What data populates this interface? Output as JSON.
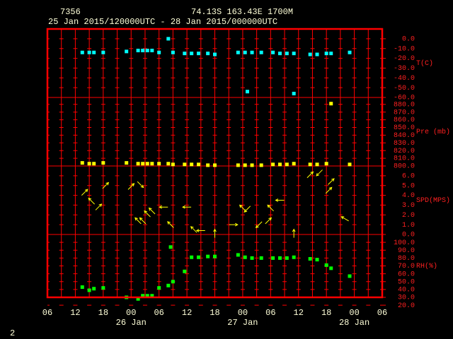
{
  "header": {
    "station": "7356",
    "location": "74.13S  163.43E  1700M",
    "period": "25 Jan 2015/120000UTC - 28 Jan 2015/000000UTC"
  },
  "footer": "2",
  "chart_data": [
    {
      "type": "scatter",
      "ylabel": "T(C)",
      "color": "#00ffff",
      "xlim": [
        "2015-01-25T06:00",
        "2015-01-28T06:00"
      ],
      "ylim": [
        -60,
        10
      ],
      "yticks": [
        {
          "value": 0,
          "label": "0.0"
        },
        {
          "value": -10,
          "label": "-10.0"
        },
        {
          "value": -20,
          "label": "-20.0"
        },
        {
          "value": -30,
          "label": "-30.0"
        },
        {
          "value": -40,
          "label": "-40.0"
        },
        {
          "value": -50,
          "label": "-50.0"
        },
        {
          "value": -60,
          "label": "-60.0"
        }
      ],
      "x": [
        "2015-01-25T13:30",
        "2015-01-25T15:00",
        "2015-01-25T16:00",
        "2015-01-25T18:00",
        "2015-01-25T23:00",
        "2015-01-26T01:30",
        "2015-01-26T02:30",
        "2015-01-26T03:30",
        "2015-01-26T04:30",
        "2015-01-26T06:00",
        "2015-01-26T08:00",
        "2015-01-26T09:00",
        "2015-01-26T11:30",
        "2015-01-26T13:00",
        "2015-01-26T14:30",
        "2015-01-26T16:30",
        "2015-01-26T18:00",
        "2015-01-26T23:00",
        "2015-01-27T00:30",
        "2015-01-27T01:00",
        "2015-01-27T02:00",
        "2015-01-27T04:00",
        "2015-01-27T06:30",
        "2015-01-27T08:00",
        "2015-01-27T09:30",
        "2015-01-27T11:00",
        "2015-01-27T11:00",
        "2015-01-27T14:30",
        "2015-01-27T16:00",
        "2015-01-27T18:00",
        "2015-01-27T19:00",
        "2015-01-27T23:00"
      ],
      "values": [
        -14,
        -14,
        -14,
        -14,
        -13,
        -12,
        -12,
        -12,
        -12,
        -14,
        0,
        -14,
        -15,
        -15,
        -15,
        -15,
        -16,
        -14,
        -14,
        -54,
        -14,
        -14,
        -14,
        -15,
        -15,
        -15,
        -56,
        -16,
        -16,
        -15,
        -15,
        -14
      ]
    },
    {
      "type": "scatter",
      "ylabel": "Pre (mb)",
      "color": "#ffff00",
      "xlim": [
        "2015-01-25T06:00",
        "2015-01-28T06:00"
      ],
      "ylim": [
        800,
        889
      ],
      "yticks": [
        {
          "value": 880,
          "label": "880.0"
        },
        {
          "value": 870,
          "label": "870.0"
        },
        {
          "value": 860,
          "label": "860.0"
        },
        {
          "value": 850,
          "label": "850.0"
        },
        {
          "value": 840,
          "label": "840.0"
        },
        {
          "value": 830,
          "label": "830.0"
        },
        {
          "value": 820,
          "label": "820.0"
        },
        {
          "value": 810,
          "label": "810.0"
        },
        {
          "value": 800,
          "label": "800.0"
        }
      ],
      "x": [
        "2015-01-25T13:30",
        "2015-01-25T15:00",
        "2015-01-25T16:00",
        "2015-01-25T18:00",
        "2015-01-25T23:00",
        "2015-01-26T01:30",
        "2015-01-26T02:30",
        "2015-01-26T03:30",
        "2015-01-26T04:30",
        "2015-01-26T06:00",
        "2015-01-26T08:00",
        "2015-01-26T09:00",
        "2015-01-26T11:30",
        "2015-01-26T13:00",
        "2015-01-26T14:30",
        "2015-01-26T16:30",
        "2015-01-26T18:00",
        "2015-01-26T23:00",
        "2015-01-27T00:30",
        "2015-01-27T02:00",
        "2015-01-27T04:00",
        "2015-01-27T06:30",
        "2015-01-27T08:00",
        "2015-01-27T09:30",
        "2015-01-27T11:00",
        "2015-01-27T14:30",
        "2015-01-27T16:00",
        "2015-01-27T18:00",
        "2015-01-27T19:00",
        "2015-01-27T23:00"
      ],
      "values": [
        804,
        803,
        803,
        804,
        804,
        803,
        803,
        803,
        803,
        803,
        803,
        802,
        802,
        802,
        802,
        801,
        801,
        801,
        801,
        801,
        801,
        802,
        802,
        802,
        803,
        802,
        802,
        803,
        881,
        802
      ]
    },
    {
      "type": "vector",
      "ylabel": "SPD(MPS)",
      "color": "#ffff00",
      "xlim": [
        "2015-01-25T06:00",
        "2015-01-28T06:00"
      ],
      "ylim": [
        0,
        7
      ],
      "yticks": [
        {
          "value": 6,
          "label": "6.0"
        },
        {
          "value": 5,
          "label": "5.0"
        },
        {
          "value": 4,
          "label": "4.0"
        },
        {
          "value": 3,
          "label": "3.0"
        },
        {
          "value": 2,
          "label": "2.0"
        },
        {
          "value": 1,
          "label": "1.0"
        },
        {
          "value": 0,
          "label": "0.0"
        }
      ],
      "x": [
        "2015-01-25T14:00",
        "2015-01-25T15:30",
        "2015-01-25T17:00",
        "2015-01-25T18:30",
        "2015-01-26T00:00",
        "2015-01-26T01:30",
        "2015-01-26T02:00",
        "2015-01-26T02:30",
        "2015-01-26T03:30",
        "2015-01-26T04:30",
        "2015-01-26T07:00",
        "2015-01-26T08:30",
        "2015-01-26T12:00",
        "2015-01-26T13:30",
        "2015-01-26T15:00",
        "2015-01-26T18:00",
        "2015-01-26T22:00",
        "2015-01-27T00:00",
        "2015-01-27T01:00",
        "2015-01-27T03:30",
        "2015-01-27T05:30",
        "2015-01-27T06:00",
        "2015-01-27T08:00",
        "2015-01-27T11:00",
        "2015-01-27T14:30",
        "2015-01-27T16:30",
        "2015-01-27T18:30",
        "2015-01-27T19:00",
        "2015-01-27T22:00"
      ],
      "values": [
        4.3,
        3.4,
        2.8,
        5.0,
        4.9,
        1.4,
        5.1,
        1.4,
        2.1,
        2.4,
        2.8,
        1.0,
        2.8,
        0.5,
        0.4,
        0.1,
        1.0,
        2.7,
        2.6,
        1.0,
        1.4,
        2.7,
        3.5,
        0.1,
        6.1,
        6.3,
        4.5,
        5.4,
        1.6
      ],
      "direction": [
        45,
        315,
        45,
        45,
        45,
        315,
        135,
        315,
        315,
        315,
        270,
        315,
        270,
        315,
        270,
        0,
        90,
        315,
        225,
        225,
        45,
        315,
        270,
        0,
        45,
        225,
        45,
        45,
        300
      ]
    },
    {
      "type": "scatter",
      "ylabel": "RH(%)",
      "color": "#00ff00",
      "xlim": [
        "2015-01-25T06:00",
        "2015-01-28T06:00"
      ],
      "ylim": [
        30,
        110
      ],
      "yticks": [
        {
          "value": 100,
          "label": "100.0"
        },
        {
          "value": 90,
          "label": "90.0"
        },
        {
          "value": 80,
          "label": "80.0"
        },
        {
          "value": 70,
          "label": "70.0"
        },
        {
          "value": 60,
          "label": "60.0"
        },
        {
          "value": 50,
          "label": "50.0"
        },
        {
          "value": 40,
          "label": "40.0"
        },
        {
          "value": 30,
          "label": "30.0"
        },
        {
          "value": 20,
          "label": "20.0"
        }
      ],
      "x": [
        "2015-01-25T13:30",
        "2015-01-25T15:00",
        "2015-01-25T16:00",
        "2015-01-25T18:00",
        "2015-01-25T23:00",
        "2015-01-26T01:30",
        "2015-01-26T02:30",
        "2015-01-26T03:30",
        "2015-01-26T04:30",
        "2015-01-26T06:00",
        "2015-01-26T08:00",
        "2015-01-26T08:30",
        "2015-01-26T09:00",
        "2015-01-26T11:30",
        "2015-01-26T13:00",
        "2015-01-26T14:30",
        "2015-01-26T16:30",
        "2015-01-26T18:00",
        "2015-01-26T23:00",
        "2015-01-27T00:30",
        "2015-01-27T02:00",
        "2015-01-27T04:00",
        "2015-01-27T06:30",
        "2015-01-27T08:00",
        "2015-01-27T09:30",
        "2015-01-27T11:00",
        "2015-01-27T14:30",
        "2015-01-27T16:00",
        "2015-01-27T18:00",
        "2015-01-27T19:00",
        "2015-01-27T23:00"
      ],
      "values": [
        43,
        39,
        41,
        42,
        30,
        28,
        32,
        32,
        32,
        42,
        45,
        94,
        50,
        63,
        81,
        81,
        82,
        82,
        84,
        81,
        80,
        80,
        80,
        80,
        80,
        81,
        79,
        78,
        71,
        67,
        57
      ],
      "xticks": [
        {
          "value": "2015-01-25T06:00",
          "label": "06"
        },
        {
          "value": "2015-01-25T12:00",
          "label": "12"
        },
        {
          "value": "2015-01-25T18:00",
          "label": "18"
        },
        {
          "value": "2015-01-26T00:00",
          "label": "00"
        },
        {
          "value": "2015-01-26T06:00",
          "label": "06"
        },
        {
          "value": "2015-01-26T12:00",
          "label": "12"
        },
        {
          "value": "2015-01-26T18:00",
          "label": "18"
        },
        {
          "value": "2015-01-27T00:00",
          "label": "00"
        },
        {
          "value": "2015-01-27T06:00",
          "label": "06"
        },
        {
          "value": "2015-01-27T12:00",
          "label": "12"
        },
        {
          "value": "2015-01-27T18:00",
          "label": "18"
        },
        {
          "value": "2015-01-28T00:00",
          "label": "00"
        },
        {
          "value": "2015-01-28T06:00",
          "label": "06"
        }
      ],
      "date_ticks": [
        {
          "value": "2015-01-26T00:00",
          "label": "26 Jan"
        },
        {
          "value": "2015-01-27T00:00",
          "label": "27 Jan"
        },
        {
          "value": "2015-01-28T00:00",
          "label": "28 Jan"
        }
      ]
    }
  ]
}
